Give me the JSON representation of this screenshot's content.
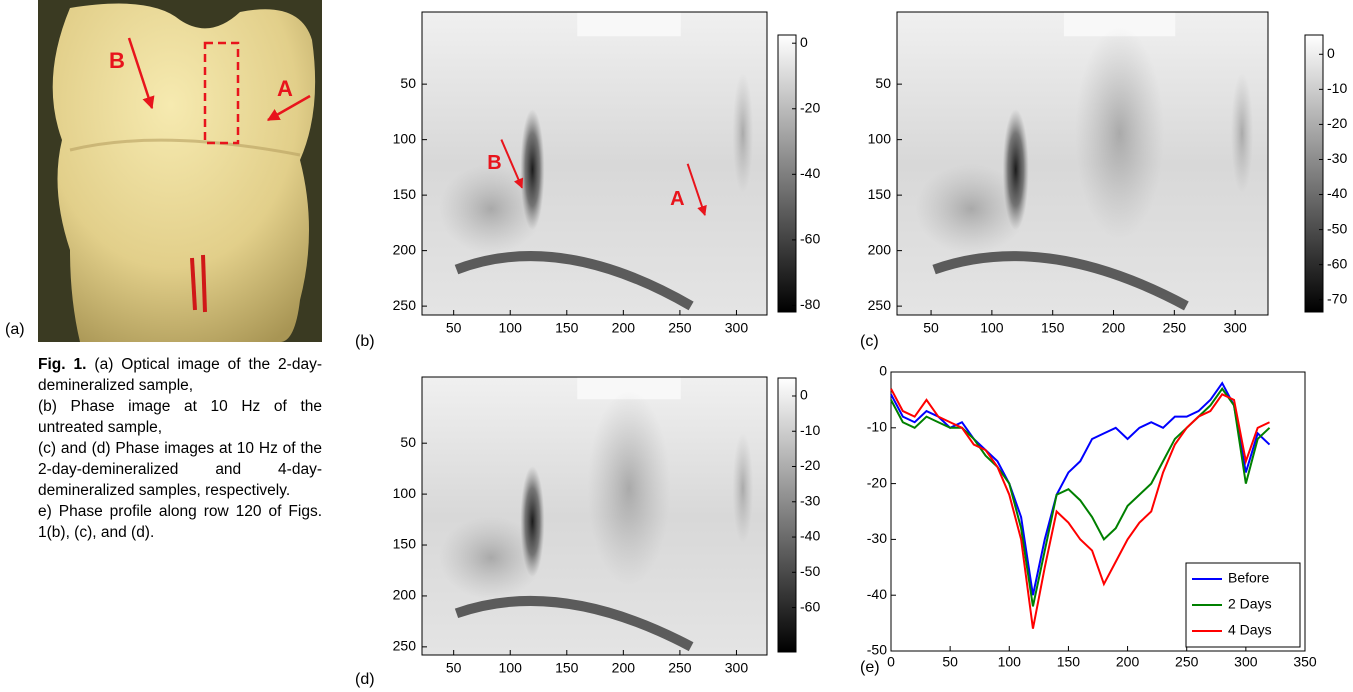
{
  "photo": {
    "label": "(a)",
    "annotations": [
      "B",
      "A"
    ]
  },
  "caption": {
    "figure_label": "Fig. 1.",
    "lines": [
      "(a) Optical image of the 2-day-demineralized sample,",
      "(b) Phase image at 10 Hz of the untreated sample,",
      "(c) and (d) Phase images at 10 Hz of the 2-day-demineralized and 4-day-demineralized samples, respectively.",
      "e) Phase profile along row 120 of Figs. 1(b), (c), and (d)."
    ]
  },
  "images": [
    {
      "label": "(b)",
      "xlim": [
        22,
        327
      ],
      "xticks": [
        50,
        100,
        150,
        200,
        250,
        300
      ],
      "ylim": [
        -15,
        258
      ],
      "yticks": [
        50,
        100,
        150,
        200,
        250
      ],
      "clim": [
        2.5,
        -82
      ],
      "colorbar_ticks": [
        0,
        -20,
        -40,
        -60,
        -80
      ],
      "annotations": [
        "B",
        "A"
      ]
    },
    {
      "label": "(c)",
      "xlim": [
        22,
        327
      ],
      "xticks": [
        50,
        100,
        150,
        200,
        250,
        300
      ],
      "ylim": [
        -15,
        258
      ],
      "yticks": [
        50,
        100,
        150,
        200,
        250
      ],
      "clim": [
        5.5,
        -73.5
      ],
      "colorbar_ticks": [
        0,
        -10,
        -20,
        -30,
        -40,
        -50,
        -60,
        -70
      ]
    },
    {
      "label": "(d)",
      "xlim": [
        22,
        327
      ],
      "xticks": [
        50,
        100,
        150,
        200,
        250,
        300
      ],
      "ylim": [
        -15,
        258
      ],
      "yticks": [
        50,
        100,
        150,
        200,
        250
      ],
      "clim": [
        5.1,
        -72.6
      ],
      "colorbar_ticks": [
        0,
        -10,
        -20,
        -30,
        -40,
        -50,
        -60
      ]
    }
  ],
  "chart_data": {
    "type": "line",
    "label": "(e)",
    "x": [
      0,
      10,
      20,
      30,
      40,
      50,
      60,
      70,
      80,
      90,
      100,
      110,
      120,
      130,
      140,
      150,
      160,
      170,
      180,
      190,
      200,
      210,
      220,
      230,
      240,
      250,
      260,
      270,
      280,
      290,
      300,
      310,
      320
    ],
    "series": [
      {
        "name": "Before",
        "color": "#0000ff",
        "values": [
          -4,
          -8,
          -9,
          -7,
          -8,
          -10,
          -9,
          -12,
          -14,
          -16,
          -20,
          -26,
          -40,
          -30,
          -22,
          -18,
          -16,
          -12,
          -11,
          -10,
          -12,
          -10,
          -9,
          -10,
          -8,
          -8,
          -7,
          -5,
          -2,
          -6,
          -18,
          -11,
          -13
        ]
      },
      {
        "name": "2 Days",
        "color": "#008000",
        "values": [
          -5,
          -9,
          -10,
          -8,
          -9,
          -10,
          -10,
          -12,
          -15,
          -17,
          -20,
          -28,
          -42,
          -32,
          -22,
          -21,
          -23,
          -26,
          -30,
          -28,
          -24,
          -22,
          -20,
          -16,
          -12,
          -10,
          -8,
          -6,
          -3,
          -6,
          -20,
          -12,
          -10
        ]
      },
      {
        "name": "4 Days",
        "color": "#ff0000",
        "values": [
          -3,
          -7,
          -8,
          -5,
          -8,
          -9,
          -10,
          -13,
          -14,
          -17,
          -22,
          -30,
          -46,
          -35,
          -25,
          -27,
          -30,
          -32,
          -38,
          -34,
          -30,
          -27,
          -25,
          -18,
          -13,
          -10,
          -8,
          -7,
          -4,
          -5,
          -16,
          -10,
          -9
        ]
      }
    ],
    "xlim": [
      0,
      350
    ],
    "xticks": [
      0,
      50,
      100,
      150,
      200,
      250,
      300,
      350
    ],
    "ylim": [
      -50,
      0
    ],
    "yticks": [
      0,
      -10,
      -20,
      -30,
      -40,
      -50
    ],
    "legend": "lower right"
  }
}
